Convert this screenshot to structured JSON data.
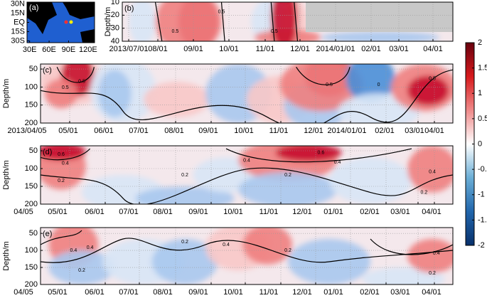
{
  "chart_data": [
    {
      "type": "map",
      "label": "(a)",
      "xlim": [
        26,
        130
      ],
      "ylim": [
        -33,
        33
      ],
      "xticks": [
        {
          "value": 30,
          "label": "30E"
        },
        {
          "value": 60,
          "label": "60E"
        },
        {
          "value": 90,
          "label": "90E"
        },
        {
          "value": 120,
          "label": "120E"
        }
      ],
      "yticks": [
        {
          "value": 30,
          "label": "30N"
        },
        {
          "value": 15,
          "label": "15N"
        },
        {
          "value": 0,
          "label": "EQ"
        },
        {
          "value": -15,
          "label": "15S"
        },
        {
          "value": -30,
          "label": "30S"
        }
      ]
    },
    {
      "type": "heatmap",
      "label": "(b)",
      "y_label": "Depth/m",
      "ylim": [
        10,
        40
      ],
      "y_inverted": true,
      "yticks": [
        10,
        20,
        30,
        40
      ],
      "xtick_labels": [
        "2013/07/01",
        "08/01",
        "09/01",
        "10/01",
        "11/01",
        "12/01",
        "2014/01/01",
        "02/01",
        "03/01",
        "04/01"
      ],
      "contour_labels": [
        "0.5",
        "0.5",
        "0.5"
      ]
    },
    {
      "type": "heatmap",
      "label": "(c)",
      "y_label": "Depth/m",
      "ylim": [
        36,
        200
      ],
      "y_inverted": true,
      "yticks": [
        50,
        100,
        150,
        200
      ],
      "xtick_labels": [
        "2013/04/05",
        "05/01",
        "06/01",
        "07/01",
        "08/01",
        "09/01",
        "10/01",
        "11/01",
        "12/01",
        "2014/01/01",
        "02/01",
        "03/01",
        "04/01"
      ],
      "contour_labels": [
        "0.5",
        "0.5",
        "0.5",
        "0",
        "0.5"
      ]
    },
    {
      "type": "heatmap",
      "label": "(d)",
      "y_label": "Depth/m",
      "ylim": [
        36,
        200
      ],
      "y_inverted": true,
      "yticks": [
        50,
        100,
        150,
        200
      ],
      "xtick_labels": [
        "04/05",
        "05/01",
        "06/01",
        "07/01",
        "08/01",
        "09/01",
        "10/01",
        "11/01",
        "12/01",
        "01/01",
        "02/01",
        "03/01",
        "04/01"
      ],
      "contour_labels": [
        "0.6",
        "0.4",
        "0.2",
        "0.4",
        "0.6",
        "0.4",
        "0.2",
        "0.4",
        "0.2",
        "0.2"
      ]
    },
    {
      "type": "heatmap",
      "label": "(e)",
      "y_label": "Depth/m",
      "ylim": [
        33,
        200
      ],
      "y_inverted": true,
      "yticks": [
        50,
        100,
        150,
        200
      ],
      "xtick_labels": [
        "04/05",
        "05/01",
        "06/01",
        "07/01",
        "08/01",
        "09/01",
        "10/01",
        "11/01",
        "12/01",
        "01/01",
        "02/01",
        "03/01",
        "04/01"
      ],
      "contour_labels": [
        "0.4",
        "0.4",
        "0.2",
        "0.2",
        "0.4",
        "0.2",
        "0.4",
        "0.2"
      ]
    },
    {
      "type": "colorbar",
      "ylim": [
        -2,
        2
      ],
      "yticks": [
        2,
        1.5,
        1,
        0.5,
        0,
        -0.5,
        -1,
        -1.5,
        -2
      ],
      "colors": [
        "#08306b",
        "#2166ac",
        "#6baed6",
        "#ffffff",
        "#ef8a8a",
        "#d7191c",
        "#67000d"
      ]
    }
  ]
}
